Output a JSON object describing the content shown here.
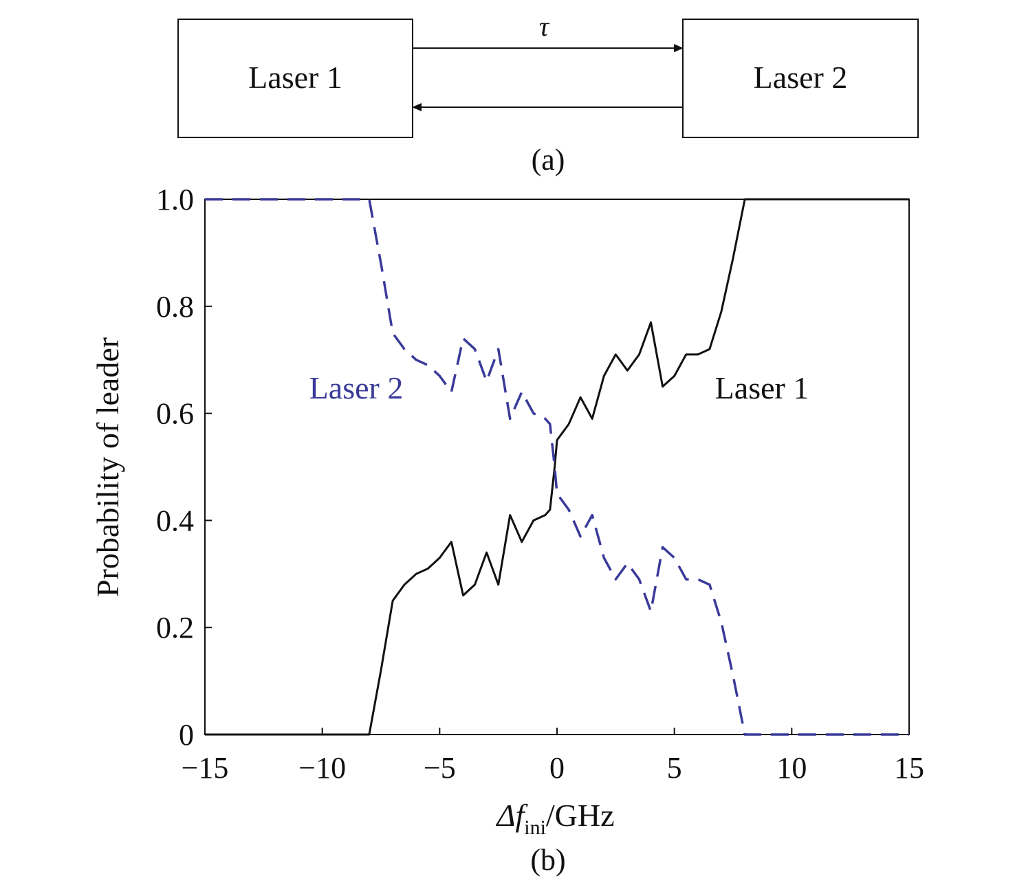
{
  "diagram": {
    "box1_label": "Laser 1",
    "box2_label": "Laser 2",
    "delay_label": "τ",
    "panel_label": "(a)"
  },
  "plot": {
    "panel_label": "(b)",
    "ylabel": "Probability of leader",
    "xlabel_main": "Δf",
    "xlabel_sub": "ini",
    "xlabel_unit": "/GHz",
    "series_label_laser2": "Laser 2",
    "series_label_laser1": "Laser 1"
  },
  "chart_data": {
    "type": "line",
    "title": "",
    "xlim": [
      -15,
      15
    ],
    "ylim": [
      0,
      1
    ],
    "xticks": [
      -15,
      -10,
      -5,
      0,
      5,
      10,
      15
    ],
    "xtick_labels": [
      "−15",
      "−10",
      "−5",
      "0",
      "5",
      "10",
      "15"
    ],
    "yticks": [
      0,
      0.2,
      0.4,
      0.6,
      0.8,
      1.0
    ],
    "ytick_labels": [
      "0",
      "0.2",
      "0.4",
      "0.6",
      "0.8",
      "1.0"
    ],
    "grid": false,
    "colors": {
      "laser1": "#111111",
      "laser2": "#3a3a9a"
    },
    "series": [
      {
        "name": "Laser 1",
        "style": "solid",
        "color": "#111111",
        "x": [
          -15,
          -14,
          -13,
          -12,
          -11,
          -10,
          -9,
          -8.5,
          -8,
          -7.5,
          -7,
          -6.5,
          -6,
          -5.5,
          -5,
          -4.5,
          -4,
          -3.5,
          -3,
          -2.5,
          -2,
          -1.5,
          -1,
          -0.5,
          -0.3,
          -0.1,
          0,
          0.5,
          1,
          1.5,
          2,
          2.5,
          3,
          3.5,
          4,
          4.5,
          5,
          5.5,
          6,
          6.5,
          7,
          7.5,
          8,
          8.5,
          9,
          10,
          11,
          12,
          13,
          14,
          15
        ],
        "y": [
          0.0,
          0.0,
          0.0,
          0.0,
          0.0,
          0.0,
          0.0,
          0.0,
          0.0,
          0.12,
          0.25,
          0.28,
          0.3,
          0.31,
          0.33,
          0.36,
          0.26,
          0.28,
          0.34,
          0.28,
          0.41,
          0.36,
          0.4,
          0.41,
          0.42,
          0.5,
          0.55,
          0.58,
          0.63,
          0.59,
          0.67,
          0.71,
          0.68,
          0.71,
          0.77,
          0.65,
          0.67,
          0.71,
          0.71,
          0.72,
          0.79,
          0.89,
          1.0,
          1.0,
          1.0,
          1.0,
          1.0,
          1.0,
          1.0,
          1.0,
          1.0
        ]
      },
      {
        "name": "Laser 2",
        "style": "dashed",
        "color": "#3a3a9a",
        "x": [
          -15,
          -14,
          -13,
          -12,
          -11,
          -10,
          -9,
          -8.5,
          -8,
          -7.5,
          -7,
          -6.5,
          -6,
          -5.5,
          -5,
          -4.5,
          -4,
          -3.5,
          -3,
          -2.5,
          -2,
          -1.5,
          -1,
          -0.5,
          -0.3,
          -0.1,
          0,
          0.5,
          1,
          1.5,
          2,
          2.5,
          3,
          3.5,
          4,
          4.5,
          5,
          5.5,
          6,
          6.5,
          7,
          7.5,
          8,
          8.5,
          9,
          10,
          11,
          12,
          13,
          14,
          15
        ],
        "y": [
          1.0,
          1.0,
          1.0,
          1.0,
          1.0,
          1.0,
          1.0,
          1.0,
          1.0,
          0.88,
          0.75,
          0.72,
          0.7,
          0.69,
          0.67,
          0.64,
          0.74,
          0.72,
          0.66,
          0.72,
          0.59,
          0.64,
          0.6,
          0.59,
          0.58,
          0.5,
          0.45,
          0.42,
          0.37,
          0.41,
          0.33,
          0.29,
          0.32,
          0.29,
          0.23,
          0.35,
          0.33,
          0.29,
          0.29,
          0.28,
          0.21,
          0.11,
          0.0,
          0.0,
          0.0,
          0.0,
          0.0,
          0.0,
          0.0,
          0.0,
          0.0
        ]
      }
    ]
  }
}
